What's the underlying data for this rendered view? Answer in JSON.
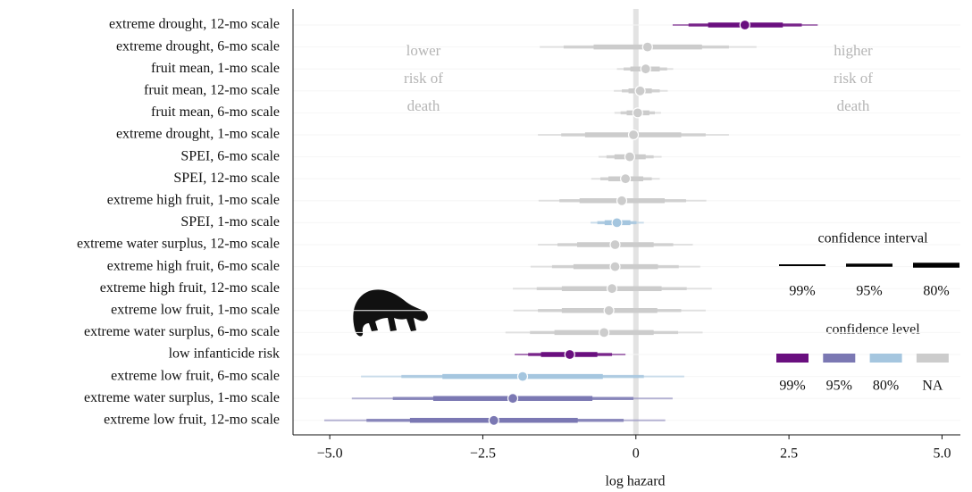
{
  "chart_data": {
    "type": "forest",
    "x_label": "log hazard",
    "xlim": [
      -5.6,
      5.3
    ],
    "xticks": [
      {
        "value": -5,
        "label": "−5.0"
      },
      {
        "value": -2.5,
        "label": "−2.5"
      },
      0,
      2.5,
      {
        "value": 5,
        "label": "5.0"
      }
    ],
    "categories": [
      "extreme drought, 12-mo scale",
      "extreme drought, 6-mo scale",
      "fruit mean, 1-mo scale",
      "fruit mean, 12-mo scale",
      "fruit mean, 6-mo scale",
      "extreme drought, 1-mo scale",
      "SPEI, 6-mo scale",
      "SPEI, 12-mo scale",
      "extreme high fruit, 1-mo scale",
      "SPEI, 1-mo scale",
      "extreme water surplus, 12-mo scale",
      "extreme high fruit, 6-mo scale",
      "extreme high fruit, 12-mo scale",
      "extreme low fruit, 1-mo scale",
      "extreme water surplus, 6-mo scale",
      "low infanticide risk",
      "extreme low fruit, 6-mo scale",
      "extreme water surplus, 1-mo scale",
      "extreme low fruit, 12-mo scale"
    ],
    "estimates": [
      1.78,
      0.19,
      0.16,
      0.07,
      0.03,
      -0.04,
      -0.1,
      -0.17,
      -0.23,
      -0.31,
      -0.34,
      -0.34,
      -0.39,
      -0.44,
      -0.52,
      -1.08,
      -1.85,
      -2.01,
      -2.32
    ],
    "colors": [
      "#6a0f7f",
      "#cccccc",
      "#cccccc",
      "#cccccc",
      "#cccccc",
      "#cccccc",
      "#cccccc",
      "#cccccc",
      "#cccccc",
      "#a5c6df",
      "#cccccc",
      "#cccccc",
      "#cccccc",
      "#cccccc",
      "#cccccc",
      "#6a0f7f",
      "#a5c6df",
      "#7b78b3",
      "#7b78b3"
    ],
    "intervals": [
      {
        "name": "99%",
        "width": 2,
        "opacity": 0.55,
        "lower": [
          0.6,
          -1.57,
          -0.31,
          -0.36,
          -0.35,
          -1.6,
          -0.61,
          -0.73,
          -1.59,
          -0.74,
          -1.6,
          -1.72,
          -2.01,
          -2.0,
          -2.13,
          -1.98,
          -4.49,
          -4.64,
          -5.09
        ],
        "upper": [
          2.97,
          1.97,
          0.61,
          0.52,
          0.41,
          1.52,
          0.42,
          0.39,
          1.15,
          0.13,
          0.93,
          1.05,
          1.24,
          1.14,
          1.09,
          -0.17,
          0.79,
          0.6,
          0.48
        ]
      },
      {
        "name": "95%",
        "width": 3.5,
        "opacity": 0.8,
        "lower": [
          0.86,
          -1.18,
          -0.2,
          -0.23,
          -0.25,
          -1.22,
          -0.48,
          -0.58,
          -1.25,
          -0.63,
          -1.28,
          -1.37,
          -1.62,
          -1.6,
          -1.73,
          -1.76,
          -3.83,
          -3.97,
          -4.4
        ],
        "upper": [
          2.71,
          1.52,
          0.51,
          0.39,
          0.31,
          1.14,
          0.29,
          0.26,
          0.82,
          0.01,
          0.61,
          0.7,
          0.83,
          0.74,
          0.69,
          -0.39,
          0.13,
          -0.04,
          -0.2
        ]
      },
      {
        "name": "80%",
        "width": 5.5,
        "opacity": 1,
        "lower": [
          1.18,
          -0.69,
          -0.09,
          -0.12,
          -0.15,
          -0.83,
          -0.35,
          -0.45,
          -0.92,
          -0.51,
          -0.96,
          -1.02,
          -1.21,
          -1.21,
          -1.33,
          -1.55,
          -3.16,
          -3.31,
          -3.69
        ],
        "upper": [
          2.4,
          1.08,
          0.39,
          0.26,
          0.22,
          0.74,
          0.16,
          0.12,
          0.47,
          -0.09,
          0.29,
          0.36,
          0.42,
          0.35,
          0.29,
          -0.63,
          -0.54,
          -0.71,
          -0.95
        ]
      }
    ],
    "interval_legend_title": "confidence interval",
    "level_legend": {
      "title": "confidence level",
      "items": [
        {
          "name": "99%",
          "color": "#6a0f7f"
        },
        {
          "name": "95%",
          "color": "#7b78b3"
        },
        {
          "name": "80%",
          "color": "#a5c6df"
        },
        {
          "name": "NA",
          "color": "#cccccc"
        }
      ]
    },
    "annotations": [
      {
        "lines": [
          "lower",
          "risk of",
          "death"
        ]
      },
      {
        "lines": [
          "higher",
          "risk of",
          "death"
        ]
      }
    ]
  }
}
